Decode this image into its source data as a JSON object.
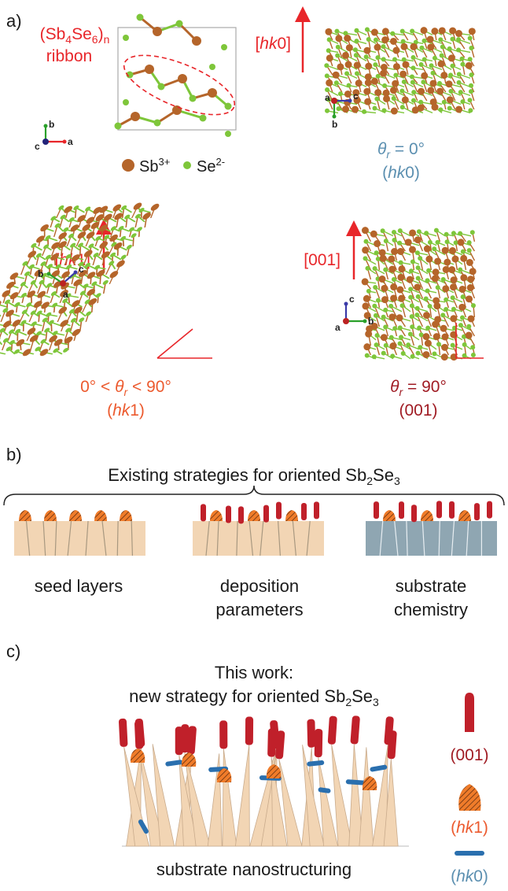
{
  "panel_a": {
    "label": "a)",
    "ribbon": {
      "formula": [
        "(Sb",
        "4",
        "Se",
        "6",
        ")",
        "n"
      ],
      "word": "ribbon"
    },
    "legend": {
      "sb": [
        "Sb",
        "3+"
      ],
      "se": [
        "Se",
        "2-"
      ]
    },
    "axes": {
      "a": "a",
      "b": "b",
      "c": "c"
    },
    "views": [
      {
        "direction": [
          "[",
          "hk",
          "0]"
        ],
        "angle": [
          "θ",
          "r",
          " = 0°"
        ],
        "plane": [
          "(",
          "hk",
          "0)"
        ]
      },
      {
        "direction": [
          "[",
          "hk",
          "1]"
        ],
        "angle": [
          "0° < ",
          "θ",
          "r",
          " < 90°"
        ],
        "plane": [
          "(",
          "hk",
          "1)"
        ]
      },
      {
        "direction": "[001]",
        "angle": [
          "θ",
          "r",
          " = 90°"
        ],
        "plane": "(001)"
      }
    ]
  },
  "panel_b": {
    "label": "b)",
    "title": [
      "Existing strategies for oriented Sb",
      "2",
      "Se",
      "3"
    ],
    "strategies": [
      [
        "seed layers"
      ],
      [
        "deposition",
        "parameters"
      ],
      [
        "substrate",
        "chemistry"
      ]
    ]
  },
  "panel_c": {
    "label": "c)",
    "title": [
      "This work:",
      "new strategy for oriented Sb",
      "2",
      "Se",
      "3"
    ],
    "caption": "substrate nanostructuring",
    "legend": {
      "l001": "(001)",
      "lhk1": [
        "(",
        "hk",
        "1)"
      ],
      "lhk0": [
        "(",
        "hk",
        "0)"
      ]
    }
  }
}
